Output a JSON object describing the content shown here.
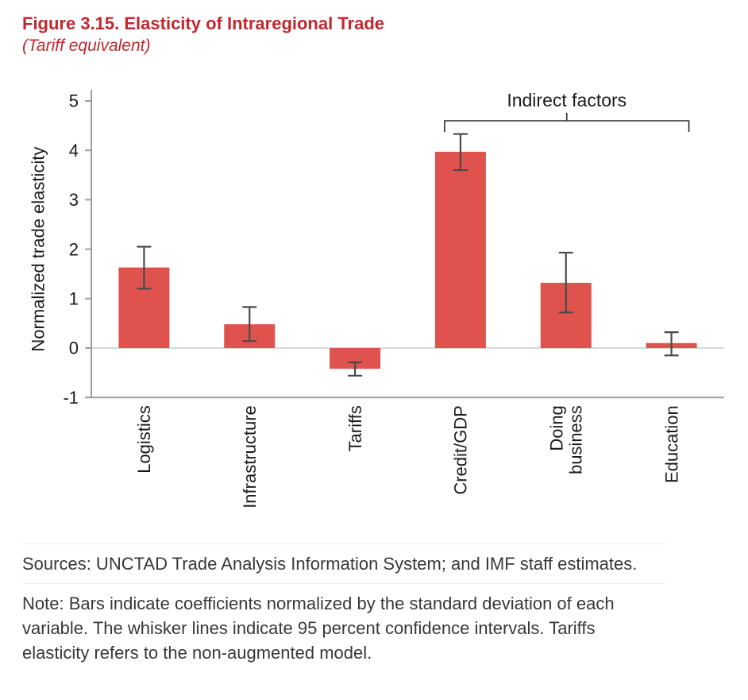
{
  "header": {
    "title": "Figure 3.15. Elasticity of Intraregional Trade",
    "subtitle": "(Tariff equivalent)"
  },
  "chart_data": {
    "type": "bar",
    "title": "Figure 3.15. Elasticity of Intraregional Trade",
    "subtitle": "(Tariff equivalent)",
    "ylabel": "Normalized trade elasticity",
    "xlabel": "",
    "ylim": [
      -1,
      5
    ],
    "yticks": [
      5,
      4,
      3,
      2,
      1,
      0,
      -1
    ],
    "grid": false,
    "legend": "none",
    "categories": [
      "Logistics",
      "Infrastructure",
      "Tariffs",
      "Credit/GDP",
      "Doing\nbusiness",
      "Education"
    ],
    "values": [
      1.63,
      0.48,
      -0.42,
      3.97,
      1.32,
      0.1
    ],
    "ci_low": [
      1.2,
      0.14,
      -0.56,
      3.6,
      0.72,
      -0.15
    ],
    "ci_high": [
      2.05,
      0.83,
      -0.29,
      4.33,
      1.93,
      0.32
    ],
    "bar_color": "#df524d",
    "error_color": "#4a4a4a",
    "axis_color": "#9e9e9e",
    "zero_line_color": "#d8d8d8",
    "text_color": "#1b1b1b",
    "annotation": {
      "label": "Indirect factors",
      "from_index": 3,
      "to_index": 5
    }
  },
  "footer": {
    "sources": "Sources: UNCTAD Trade Analysis Information System; and IMF staff estimates.",
    "note": "Note: Bars indicate coefficients normalized by the standard deviation of each variable. The whisker lines indicate 95 percent confidence intervals. Tariffs elasticity refers to the non-augmented model."
  }
}
